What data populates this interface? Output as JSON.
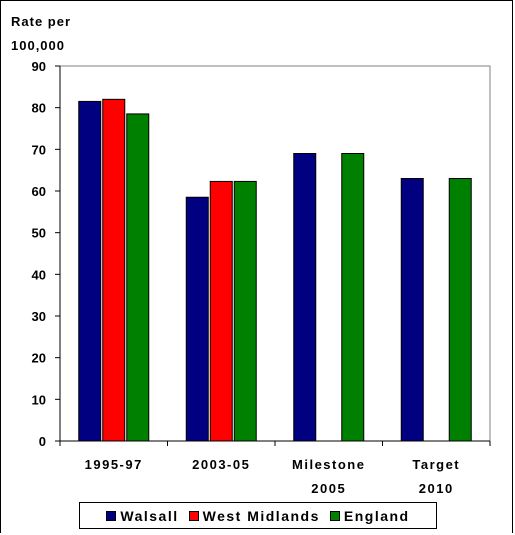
{
  "chart_data": {
    "type": "bar",
    "ylabel_lines": [
      "Rate per",
      "100,000"
    ],
    "ylim": [
      0,
      90
    ],
    "yticks": [
      0,
      10,
      20,
      30,
      40,
      50,
      60,
      70,
      80,
      90
    ],
    "categories": [
      {
        "lines": [
          "1995-97"
        ]
      },
      {
        "lines": [
          "2003-05"
        ]
      },
      {
        "lines": [
          "Milestone",
          "2005"
        ]
      },
      {
        "lines": [
          "Target",
          "2010"
        ]
      }
    ],
    "series": [
      {
        "name": "Walsall",
        "color": "#000080",
        "values": [
          81.5,
          58.5,
          69,
          63
        ]
      },
      {
        "name": "West Midlands",
        "color": "#ff0000",
        "values": [
          82,
          62.3,
          null,
          null
        ]
      },
      {
        "name": "England",
        "color": "#008000",
        "values": [
          78.5,
          62.3,
          69,
          63
        ]
      }
    ],
    "grid": false,
    "legend_position": "bottom"
  }
}
